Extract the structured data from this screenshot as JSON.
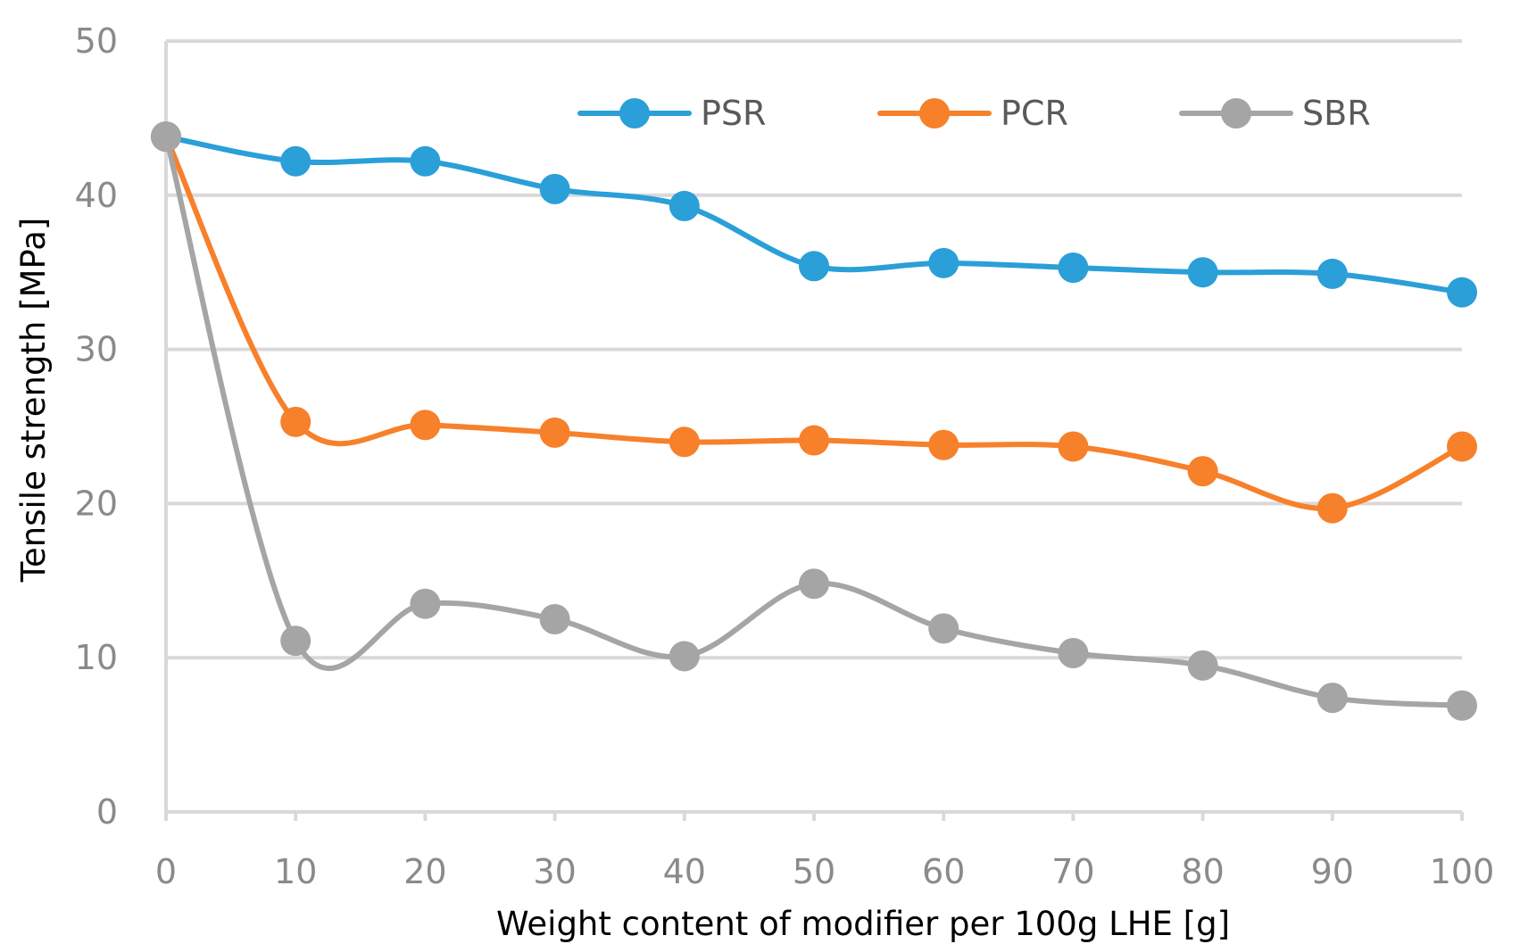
{
  "chart_data": {
    "type": "line",
    "smooth": true,
    "title": "",
    "xlabel": "Weight content of modifier per 100g LHE [g]",
    "ylabel": "Tensile strength [MPa]",
    "x": [
      0,
      10,
      20,
      30,
      40,
      50,
      60,
      70,
      80,
      90,
      100
    ],
    "xlim": [
      0,
      100
    ],
    "ylim": [
      0,
      50
    ],
    "xticks": [
      "0",
      "10",
      "20",
      "30",
      "40",
      "50",
      "60",
      "70",
      "80",
      "90",
      "100"
    ],
    "yticks": [
      "0",
      "10",
      "20",
      "30",
      "40",
      "50"
    ],
    "grid": "horizontal",
    "legend_position": "top-right",
    "series": [
      {
        "name": "PSR",
        "color": "#2a9fd8",
        "values": [
          43.8,
          42.2,
          42.2,
          40.4,
          39.3,
          35.4,
          35.6,
          35.3,
          35.0,
          34.9,
          33.7
        ]
      },
      {
        "name": "PCR",
        "color": "#f7802a",
        "values": [
          43.8,
          25.3,
          25.1,
          24.6,
          24.0,
          24.1,
          23.8,
          23.7,
          22.1,
          19.7,
          23.7
        ]
      },
      {
        "name": "SBR",
        "color": "#a5a5a5",
        "values": [
          43.8,
          11.1,
          13.5,
          12.5,
          10.1,
          14.8,
          11.9,
          10.3,
          9.5,
          7.4,
          6.9
        ]
      }
    ]
  }
}
